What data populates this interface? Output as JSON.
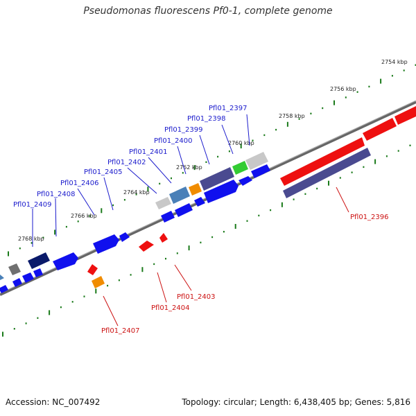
{
  "title": "Pseudomonas fluorescens Pf0-1, complete genome",
  "footer": {
    "accession": "Accession: NC_007492",
    "summary": "Topology: circular; Length: 6,438,405 bp; Genes: 5,816"
  },
  "ticks": [
    "2754 kbp",
    "2756 kbp",
    "2758 kbp",
    "2760 kbp",
    "2762 kbp",
    "2764 kbp",
    "2766 kbp",
    "2768 kbp"
  ],
  "gene_labels_forward": [
    "Pfl01_2397",
    "Pfl01_2398",
    "Pfl01_2399",
    "Pfl01_2400",
    "Pfl01_2401",
    "Pfl01_2402",
    "Pfl01_2405",
    "Pfl01_2406",
    "Pfl01_2408",
    "Pfl01_2409"
  ],
  "gene_labels_reverse": [
    "Pfl01_2396",
    "Pfl01_2403",
    "Pfl01_2404",
    "Pfl01_2407"
  ],
  "colors": {
    "forward_label": "#1a1acc",
    "reverse_label": "#cc1111",
    "gene_blue": "#1010ee",
    "gene_red": "#ee1010",
    "gene_navy": "#0a1a6a",
    "gene_slate": "#4a4a90",
    "gene_green": "#33cc33",
    "gene_orange": "#f08c00",
    "gene_steel": "#4a80b8",
    "gene_silver": "#c8c8c8",
    "gene_gray": "#707070",
    "tick_mark": "#1a7a1a",
    "backbone": "#777777"
  }
}
